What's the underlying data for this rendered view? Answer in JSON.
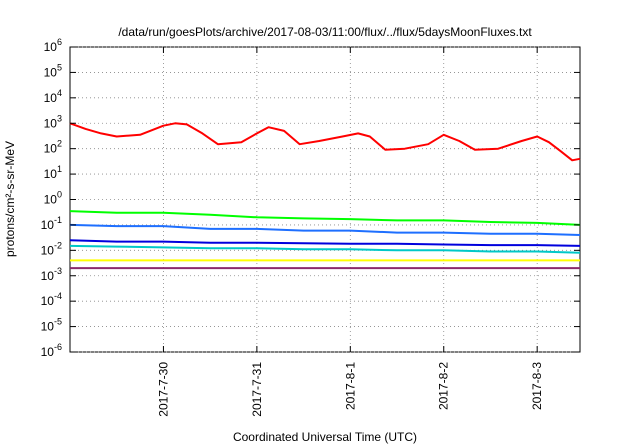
{
  "chart_data": {
    "type": "line",
    "title": "/data/run/goesPlots/archive/2017-08-03/11:00/flux/../flux/5daysMoonFluxes.txt",
    "xlabel": "Coordinated Universal Time (UTC)",
    "ylabel": "protons/cm²-s-sr-MeV",
    "y_scale": "log",
    "ylim": [
      1e-06,
      1000000.0
    ],
    "y_ticks": [
      {
        "value": 1e-06,
        "base": "10",
        "exp": "-6"
      },
      {
        "value": 1e-05,
        "base": "10",
        "exp": "-5"
      },
      {
        "value": 0.0001,
        "base": "10",
        "exp": "-4"
      },
      {
        "value": 0.001,
        "base": "10",
        "exp": "-3"
      },
      {
        "value": 0.01,
        "base": "10",
        "exp": "-2"
      },
      {
        "value": 0.1,
        "base": "10",
        "exp": "-1"
      },
      {
        "value": 1,
        "base": "10",
        "exp": "0"
      },
      {
        "value": 10,
        "base": "10",
        "exp": "1"
      },
      {
        "value": 100,
        "base": "10",
        "exp": "2"
      },
      {
        "value": 1000,
        "base": "10",
        "exp": "3"
      },
      {
        "value": 10000,
        "base": "10",
        "exp": "4"
      },
      {
        "value": 100000,
        "base": "10",
        "exp": "5"
      },
      {
        "value": 1000000,
        "base": "10",
        "exp": "6"
      }
    ],
    "xlim": [
      "2017-07-29T00:00",
      "2017-08-03T11:00"
    ],
    "x_ticks": [
      {
        "value": "2017-07-30T00:00",
        "label": "2017-7-30"
      },
      {
        "value": "2017-07-31T00:00",
        "label": "2017-7-31"
      },
      {
        "value": "2017-08-01T00:00",
        "label": "2017-8-1"
      },
      {
        "value": "2017-08-02T00:00",
        "label": "2017-8-2"
      },
      {
        "value": "2017-08-03T00:00",
        "label": "2017-8-3"
      }
    ],
    "grid": true,
    "legend": "none",
    "series": [
      {
        "color": "#ff0000",
        "points": [
          [
            "2017-07-29T00:00",
            1000
          ],
          [
            "2017-07-29T04:00",
            600
          ],
          [
            "2017-07-29T08:00",
            400
          ],
          [
            "2017-07-29T12:00",
            300
          ],
          [
            "2017-07-29T18:00",
            350
          ],
          [
            "2017-07-30T00:00",
            800
          ],
          [
            "2017-07-30T03:00",
            1000
          ],
          [
            "2017-07-30T06:00",
            900
          ],
          [
            "2017-07-30T10:00",
            400
          ],
          [
            "2017-07-30T14:00",
            150
          ],
          [
            "2017-07-30T20:00",
            180
          ],
          [
            "2017-07-31T00:00",
            400
          ],
          [
            "2017-07-31T03:00",
            700
          ],
          [
            "2017-07-31T07:00",
            500
          ],
          [
            "2017-07-31T11:00",
            150
          ],
          [
            "2017-07-31T16:00",
            200
          ],
          [
            "2017-07-31T22:00",
            300
          ],
          [
            "2017-08-01T02:00",
            400
          ],
          [
            "2017-08-01T05:00",
            300
          ],
          [
            "2017-08-01T09:00",
            90
          ],
          [
            "2017-08-01T14:00",
            100
          ],
          [
            "2017-08-01T20:00",
            150
          ],
          [
            "2017-08-02T00:00",
            350
          ],
          [
            "2017-08-02T04:00",
            200
          ],
          [
            "2017-08-02T08:00",
            90
          ],
          [
            "2017-08-02T14:00",
            100
          ],
          [
            "2017-08-02T20:00",
            200
          ],
          [
            "2017-08-03T00:00",
            300
          ],
          [
            "2017-08-03T03:00",
            180
          ],
          [
            "2017-08-03T06:00",
            80
          ],
          [
            "2017-08-03T09:00",
            35
          ],
          [
            "2017-08-03T11:00",
            40
          ]
        ]
      },
      {
        "color": "#00ff00",
        "points": [
          [
            "2017-07-29T00:00",
            0.35
          ],
          [
            "2017-07-29T12:00",
            0.3
          ],
          [
            "2017-07-30T00:00",
            0.3
          ],
          [
            "2017-07-30T12:00",
            0.25
          ],
          [
            "2017-07-31T00:00",
            0.2
          ],
          [
            "2017-07-31T12:00",
            0.18
          ],
          [
            "2017-08-01T00:00",
            0.17
          ],
          [
            "2017-08-01T12:00",
            0.15
          ],
          [
            "2017-08-02T00:00",
            0.15
          ],
          [
            "2017-08-02T12:00",
            0.13
          ],
          [
            "2017-08-03T00:00",
            0.12
          ],
          [
            "2017-08-03T11:00",
            0.1
          ]
        ]
      },
      {
        "color": "#1e6fff",
        "points": [
          [
            "2017-07-29T00:00",
            0.1
          ],
          [
            "2017-07-29T12:00",
            0.09
          ],
          [
            "2017-07-30T00:00",
            0.09
          ],
          [
            "2017-07-30T12:00",
            0.07
          ],
          [
            "2017-07-31T00:00",
            0.07
          ],
          [
            "2017-07-31T12:00",
            0.06
          ],
          [
            "2017-08-01T00:00",
            0.06
          ],
          [
            "2017-08-01T12:00",
            0.05
          ],
          [
            "2017-08-02T00:00",
            0.05
          ],
          [
            "2017-08-02T12:00",
            0.045
          ],
          [
            "2017-08-03T00:00",
            0.045
          ],
          [
            "2017-08-03T11:00",
            0.04
          ]
        ]
      },
      {
        "color": "#00c8c8",
        "points": [
          [
            "2017-07-29T00:00",
            0.015
          ],
          [
            "2017-07-29T12:00",
            0.014
          ],
          [
            "2017-07-30T00:00",
            0.013
          ],
          [
            "2017-07-30T12:00",
            0.012
          ],
          [
            "2017-07-31T00:00",
            0.012
          ],
          [
            "2017-07-31T12:00",
            0.011
          ],
          [
            "2017-08-01T00:00",
            0.011
          ],
          [
            "2017-08-01T12:00",
            0.01
          ],
          [
            "2017-08-02T00:00",
            0.01
          ],
          [
            "2017-08-02T12:00",
            0.009
          ],
          [
            "2017-08-03T00:00",
            0.009
          ],
          [
            "2017-08-03T11:00",
            0.008
          ]
        ]
      },
      {
        "color": "#0000dd",
        "points": [
          [
            "2017-07-29T00:00",
            0.025
          ],
          [
            "2017-07-29T12:00",
            0.022
          ],
          [
            "2017-07-30T00:00",
            0.022
          ],
          [
            "2017-07-30T12:00",
            0.02
          ],
          [
            "2017-07-31T00:00",
            0.02
          ],
          [
            "2017-07-31T12:00",
            0.019
          ],
          [
            "2017-08-01T00:00",
            0.018
          ],
          [
            "2017-08-01T12:00",
            0.018
          ],
          [
            "2017-08-02T00:00",
            0.017
          ],
          [
            "2017-08-02T12:00",
            0.016
          ],
          [
            "2017-08-03T00:00",
            0.016
          ],
          [
            "2017-08-03T11:00",
            0.015
          ]
        ]
      },
      {
        "color": "#ffff00",
        "points": [
          [
            "2017-07-29T00:00",
            0.004
          ],
          [
            "2017-07-29T12:00",
            0.004
          ],
          [
            "2017-07-30T00:00",
            0.004
          ],
          [
            "2017-07-30T12:00",
            0.004
          ],
          [
            "2017-07-31T00:00",
            0.004
          ],
          [
            "2017-07-31T12:00",
            0.004
          ],
          [
            "2017-08-01T00:00",
            0.004
          ],
          [
            "2017-08-01T12:00",
            0.004
          ],
          [
            "2017-08-02T00:00",
            0.004
          ],
          [
            "2017-08-02T12:00",
            0.004
          ],
          [
            "2017-08-03T00:00",
            0.004
          ],
          [
            "2017-08-03T11:00",
            0.004
          ]
        ]
      },
      {
        "color": "#8b2a6b",
        "points": [
          [
            "2017-07-29T00:00",
            0.002
          ],
          [
            "2017-07-29T12:00",
            0.002
          ],
          [
            "2017-07-30T00:00",
            0.002
          ],
          [
            "2017-07-30T12:00",
            0.002
          ],
          [
            "2017-07-31T00:00",
            0.002
          ],
          [
            "2017-07-31T12:00",
            0.002
          ],
          [
            "2017-08-01T00:00",
            0.002
          ],
          [
            "2017-08-01T12:00",
            0.002
          ],
          [
            "2017-08-02T00:00",
            0.002
          ],
          [
            "2017-08-02T12:00",
            0.002
          ],
          [
            "2017-08-03T00:00",
            0.002
          ],
          [
            "2017-08-03T11:00",
            0.002
          ]
        ]
      }
    ]
  }
}
